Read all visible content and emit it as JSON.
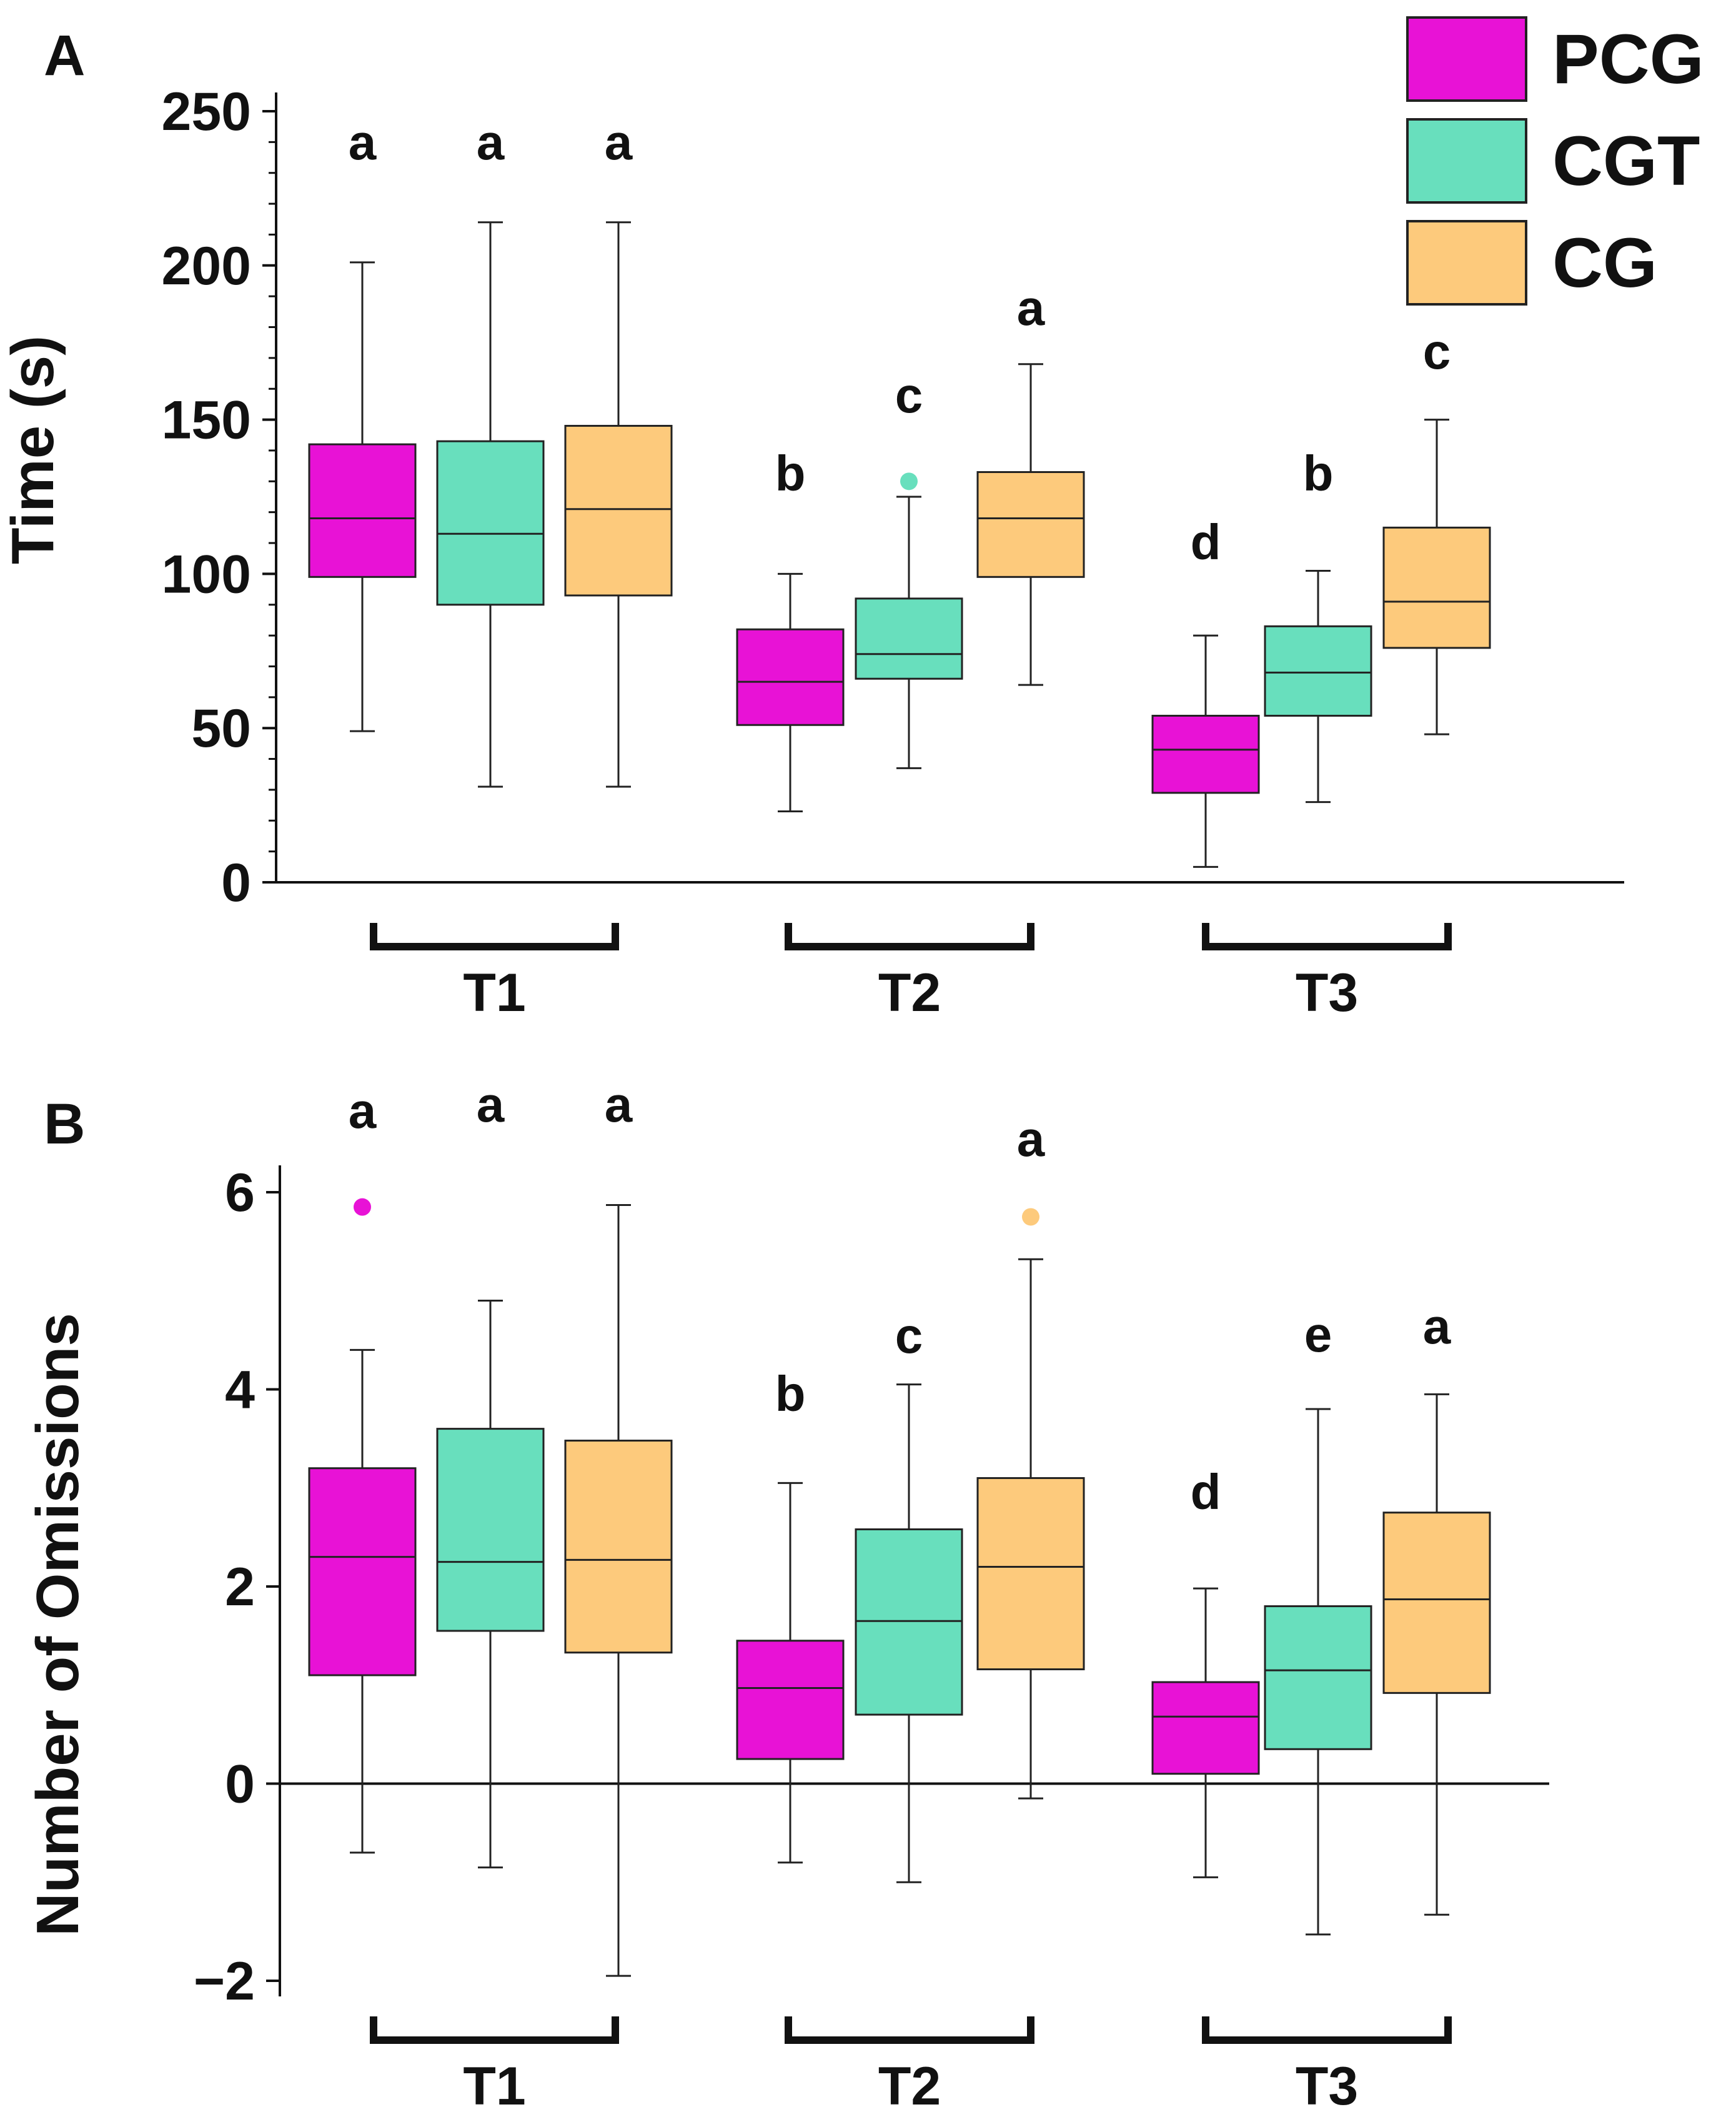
{
  "chart_data": [
    {
      "panel": "A",
      "type": "boxplot",
      "ylabel": "Time (s)",
      "xlabel": "",
      "ylim": [
        0,
        250
      ],
      "yticks": [
        0,
        50,
        100,
        150,
        200,
        250
      ],
      "groups": [
        "T1",
        "T2",
        "T3"
      ],
      "series": [
        {
          "name": "PCG",
          "color": "#e812d6",
          "boxes": [
            {
              "whisker_low": 49,
              "q1": 99,
              "median": 118,
              "q3": 142,
              "whisker_high": 201,
              "outliers": [],
              "letter": "a"
            },
            {
              "whisker_low": 23,
              "q1": 51,
              "median": 65,
              "q3": 82,
              "whisker_high": 100,
              "outliers": [],
              "letter": "b"
            },
            {
              "whisker_low": 5,
              "q1": 29,
              "median": 43,
              "q3": 54,
              "whisker_high": 80,
              "outliers": [],
              "letter": "d"
            }
          ]
        },
        {
          "name": "CGT",
          "color": "#68dfbd",
          "boxes": [
            {
              "whisker_low": 31,
              "q1": 90,
              "median": 113,
              "q3": 143,
              "whisker_high": 214,
              "outliers": [],
              "letter": "a"
            },
            {
              "whisker_low": 37,
              "q1": 66,
              "median": 74,
              "q3": 92,
              "whisker_high": 125,
              "outliers": [
                130
              ],
              "letter": "c"
            },
            {
              "whisker_low": 26,
              "q1": 54,
              "median": 68,
              "q3": 83,
              "whisker_high": 101,
              "outliers": [],
              "letter": "b"
            }
          ]
        },
        {
          "name": "CG",
          "color": "#fdca7c",
          "boxes": [
            {
              "whisker_low": 31,
              "q1": 93,
              "median": 121,
              "q3": 148,
              "whisker_high": 214,
              "outliers": [],
              "letter": "a"
            },
            {
              "whisker_low": 64,
              "q1": 99,
              "median": 118,
              "q3": 133,
              "whisker_high": 168,
              "outliers": [],
              "letter": "a"
            },
            {
              "whisker_low": 48,
              "q1": 76,
              "median": 91,
              "q3": 115,
              "whisker_high": 150,
              "outliers": [],
              "letter": "c"
            }
          ]
        }
      ]
    },
    {
      "panel": "B",
      "type": "boxplot",
      "ylabel": "Number of Omissions",
      "xlabel": "",
      "ylim": [
        -2,
        6.2
      ],
      "yticks": [
        -2,
        0,
        2,
        4,
        6
      ],
      "ytick_labels": [
        "−2",
        "0",
        "2",
        "4",
        "6"
      ],
      "groups": [
        "T1",
        "T2",
        "T3"
      ],
      "series": [
        {
          "name": "PCG",
          "color": "#e812d6",
          "boxes": [
            {
              "whisker_low": -0.7,
              "q1": 1.1,
              "median": 2.3,
              "q3": 3.2,
              "whisker_high": 4.4,
              "outliers": [
                5.85
              ],
              "letter": "a"
            },
            {
              "whisker_low": -0.8,
              "q1": 0.25,
              "median": 0.97,
              "q3": 1.45,
              "whisker_high": 3.05,
              "outliers": [],
              "letter": "b"
            },
            {
              "whisker_low": -0.95,
              "q1": 0.1,
              "median": 0.68,
              "q3": 1.03,
              "whisker_high": 1.98,
              "outliers": [],
              "letter": "d"
            }
          ]
        },
        {
          "name": "CGT",
          "color": "#68dfbd",
          "boxes": [
            {
              "whisker_low": -0.85,
              "q1": 1.55,
              "median": 2.25,
              "q3": 3.6,
              "whisker_high": 4.9,
              "outliers": [],
              "letter": "a"
            },
            {
              "whisker_low": -1.0,
              "q1": 0.7,
              "median": 1.65,
              "q3": 2.58,
              "whisker_high": 4.05,
              "outliers": [],
              "letter": "c"
            },
            {
              "whisker_low": -1.53,
              "q1": 0.35,
              "median": 1.15,
              "q3": 1.8,
              "whisker_high": 3.8,
              "outliers": [],
              "letter": "e"
            }
          ]
        },
        {
          "name": "CG",
          "color": "#fdca7c",
          "boxes": [
            {
              "whisker_low": -1.95,
              "q1": 1.33,
              "median": 2.27,
              "q3": 3.48,
              "whisker_high": 5.87,
              "outliers": [],
              "letter": "a"
            },
            {
              "whisker_low": -0.15,
              "q1": 1.16,
              "median": 2.2,
              "q3": 3.1,
              "whisker_high": 5.32,
              "outliers": [
                5.75
              ],
              "letter": "a"
            },
            {
              "whisker_low": -1.33,
              "q1": 0.92,
              "median": 1.87,
              "q3": 2.75,
              "whisker_high": 3.95,
              "outliers": [],
              "letter": "a"
            }
          ]
        }
      ]
    }
  ],
  "legend": {
    "placement": "top-right",
    "items": [
      {
        "label": "PCG",
        "color": "#e812d6"
      },
      {
        "label": "CGT",
        "color": "#68dfbd"
      },
      {
        "label": "CG",
        "color": "#fdca7c"
      }
    ]
  }
}
